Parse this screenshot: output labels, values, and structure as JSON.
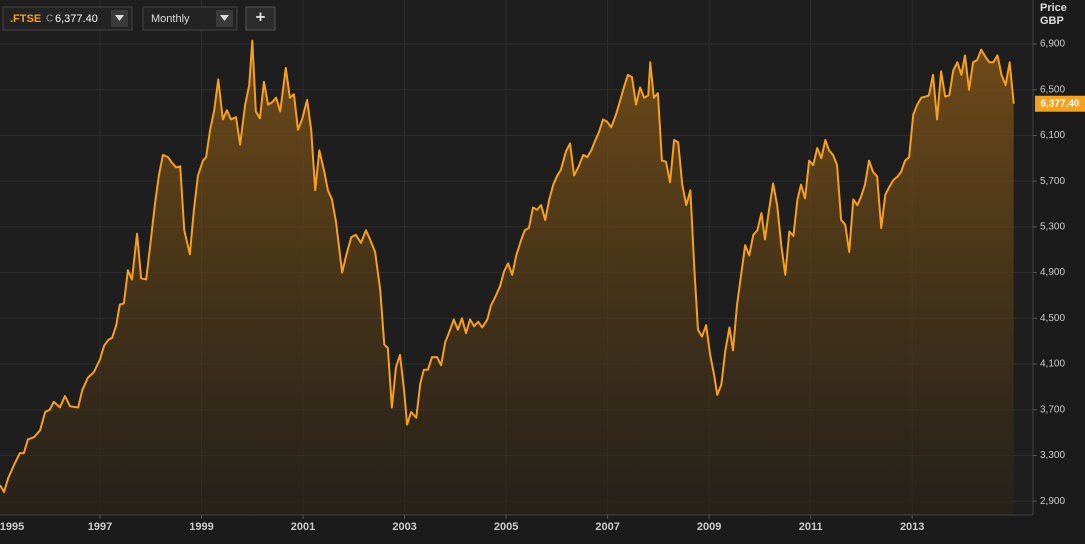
{
  "toolbar": {
    "symbol": ".FTSE",
    "close_prefix": "C",
    "interval": "Monthly",
    "add_button": "+"
  },
  "chart_data": {
    "type": "area",
    "y_axis_label": [
      "Price",
      "GBP"
    ],
    "color": "#f7a01c",
    "x": [
      1995.03,
      1995.11,
      1995.19,
      1995.31,
      1995.42,
      1995.5,
      1995.58,
      1995.7,
      1995.82,
      1995.92,
      1996.01,
      1996.09,
      1996.21,
      1996.31,
      1996.41,
      1996.57,
      1996.65,
      1996.76,
      1996.88,
      1997.0,
      1997.08,
      1997.16,
      1997.24,
      1997.32,
      1997.39,
      1997.47,
      1997.55,
      1997.63,
      1997.73,
      1997.81,
      1997.91,
      1997.99,
      1998.08,
      1998.16,
      1998.24,
      1998.34,
      1998.42,
      1998.5,
      1998.58,
      1998.66,
      1998.77,
      1998.85,
      1998.93,
      1999.03,
      1999.09,
      1999.17,
      1999.25,
      1999.33,
      1999.42,
      1999.5,
      1999.58,
      1999.68,
      1999.76,
      1999.86,
      1999.94,
      2000.0,
      2000.07,
      2000.15,
      2000.23,
      2000.31,
      2000.39,
      2000.47,
      2000.55,
      2000.66,
      2000.74,
      2000.82,
      2000.9,
      2000.98,
      2001.08,
      2001.16,
      2001.24,
      2001.32,
      2001.41,
      2001.49,
      2001.57,
      2001.65,
      2001.77,
      2001.85,
      2001.95,
      2002.04,
      2002.14,
      2002.24,
      2002.32,
      2002.42,
      2002.52,
      2002.6,
      2002.67,
      2002.75,
      2002.83,
      2002.91,
      2002.99,
      2003.05,
      2003.13,
      2003.23,
      2003.31,
      2003.38,
      2003.46,
      2003.54,
      2003.64,
      2003.72,
      2003.8,
      2003.88,
      2003.97,
      2004.05,
      2004.13,
      2004.21,
      2004.29,
      2004.37,
      2004.45,
      2004.53,
      2004.63,
      2004.7,
      2004.78,
      2004.88,
      2004.96,
      2005.04,
      2005.12,
      2005.2,
      2005.3,
      2005.37,
      2005.45,
      2005.53,
      2005.61,
      2005.69,
      2005.77,
      2005.85,
      2005.93,
      2006.01,
      2006.08,
      2006.18,
      2006.26,
      2006.34,
      2006.42,
      2006.52,
      2006.6,
      2006.68,
      2006.75,
      2006.83,
      2006.91,
      2006.99,
      2007.07,
      2007.17,
      2007.25,
      2007.32,
      2007.4,
      2007.48,
      2007.56,
      2007.64,
      2007.72,
      2007.8,
      2007.84,
      2007.91,
      2007.99,
      2008.07,
      2008.15,
      2008.23,
      2008.31,
      2008.39,
      2008.47,
      2008.55,
      2008.63,
      2008.71,
      2008.78,
      2008.86,
      2008.94,
      2009.02,
      2009.1,
      2009.16,
      2009.24,
      2009.32,
      2009.4,
      2009.47,
      2009.55,
      2009.63,
      2009.71,
      2009.79,
      2009.87,
      2009.95,
      2010.03,
      2010.1,
      2010.18,
      2010.26,
      2010.34,
      2010.42,
      2010.5,
      2010.58,
      2010.66,
      2010.74,
      2010.81,
      2010.89,
      2010.97,
      2011.05,
      2011.13,
      2011.21,
      2011.29,
      2011.36,
      2011.44,
      2011.52,
      2011.6,
      2011.68,
      2011.76,
      2011.84,
      2011.92,
      2011.99,
      2012.07,
      2012.15,
      2012.23,
      2012.31,
      2012.39,
      2012.47,
      2012.55,
      2012.63,
      2012.71,
      2012.78,
      2012.86,
      2012.94,
      2013.02,
      2013.1,
      2013.18,
      2013.26,
      2013.33,
      2013.41,
      2013.49,
      2013.57,
      2013.65,
      2013.73,
      2013.81,
      2013.89,
      2013.97,
      2014.04,
      2014.12,
      2014.2,
      2014.28,
      2014.36,
      2014.44,
      2014.52,
      2014.6,
      2014.68,
      2014.76,
      2014.84,
      2014.92,
      2015.0
    ],
    "values": [
      3040,
      2980,
      3100,
      3220,
      3320,
      3320,
      3440,
      3460,
      3520,
      3680,
      3700,
      3770,
      3720,
      3820,
      3730,
      3720,
      3870,
      3980,
      4030,
      4140,
      4260,
      4310,
      4330,
      4440,
      4620,
      4630,
      4920,
      4840,
      5240,
      4850,
      4840,
      5140,
      5490,
      5750,
      5930,
      5910,
      5860,
      5820,
      5830,
      5270,
      5060,
      5450,
      5750,
      5880,
      5910,
      6150,
      6320,
      6590,
      6240,
      6320,
      6240,
      6260,
      6020,
      6370,
      6540,
      6930,
      6310,
      6250,
      6570,
      6370,
      6390,
      6430,
      6310,
      6690,
      6430,
      6460,
      6150,
      6240,
      6410,
      6150,
      5620,
      5970,
      5800,
      5620,
      5540,
      5340,
      4900,
      5050,
      5210,
      5230,
      5160,
      5270,
      5190,
      5080,
      4750,
      4270,
      4240,
      3720,
      4070,
      4180,
      3870,
      3570,
      3680,
      3630,
      3930,
      4050,
      4050,
      4160,
      4160,
      4090,
      4290,
      4380,
      4490,
      4400,
      4500,
      4370,
      4490,
      4430,
      4470,
      4420,
      4490,
      4610,
      4680,
      4780,
      4910,
      4980,
      4880,
      5050,
      5190,
      5270,
      5290,
      5470,
      5450,
      5490,
      5360,
      5540,
      5670,
      5750,
      5800,
      5960,
      6030,
      5750,
      5820,
      5930,
      5910,
      5970,
      6050,
      6130,
      6240,
      6220,
      6170,
      6290,
      6410,
      6520,
      6630,
      6610,
      6370,
      6520,
      6430,
      6450,
      6740,
      6430,
      6470,
      5880,
      5870,
      5690,
      6060,
      6040,
      5670,
      5490,
      5620,
      4920,
      4400,
      4340,
      4440,
      4180,
      4000,
      3830,
      3920,
      4220,
      4420,
      4220,
      4620,
      4880,
      5140,
      5050,
      5230,
      5270,
      5420,
      5190,
      5450,
      5680,
      5490,
      5140,
      4880,
      5260,
      5220,
      5540,
      5670,
      5550,
      5880,
      5840,
      5990,
      5900,
      6060,
      5970,
      5930,
      5840,
      5360,
      5320,
      5080,
      5540,
      5490,
      5560,
      5670,
      5880,
      5780,
      5740,
      5290,
      5580,
      5650,
      5710,
      5740,
      5780,
      5880,
      5910,
      6280,
      6370,
      6430,
      6440,
      6450,
      6630,
      6240,
      6660,
      6440,
      6450,
      6670,
      6740,
      6630,
      6800,
      6500,
      6740,
      6760,
      6850,
      6790,
      6740,
      6740,
      6800,
      6630,
      6540,
      6740,
      6377.4
    ],
    "last_price": {
      "value": 6377.4,
      "label": "6,377.40"
    },
    "xlim": [
      1995.03,
      2015.38
    ],
    "ylim": [
      2779,
      7285
    ],
    "xticks": [
      1995,
      1997,
      1999,
      2001,
      2003,
      2005,
      2007,
      2009,
      2011,
      2013
    ],
    "yticks": [
      {
        "value": 2900,
        "label": "2,900"
      },
      {
        "value": 3300,
        "label": "3,300"
      },
      {
        "value": 3700,
        "label": "3,700"
      },
      {
        "value": 4100,
        "label": "4,100"
      },
      {
        "value": 4500,
        "label": "4,500"
      },
      {
        "value": 4900,
        "label": "4,900"
      },
      {
        "value": 5300,
        "label": "5,300"
      },
      {
        "value": 5700,
        "label": "5,700"
      },
      {
        "value": 6100,
        "label": "6,100"
      },
      {
        "value": 6500,
        "label": "6,500"
      },
      {
        "value": 6900,
        "label": "6,900"
      }
    ],
    "grid": true
  }
}
